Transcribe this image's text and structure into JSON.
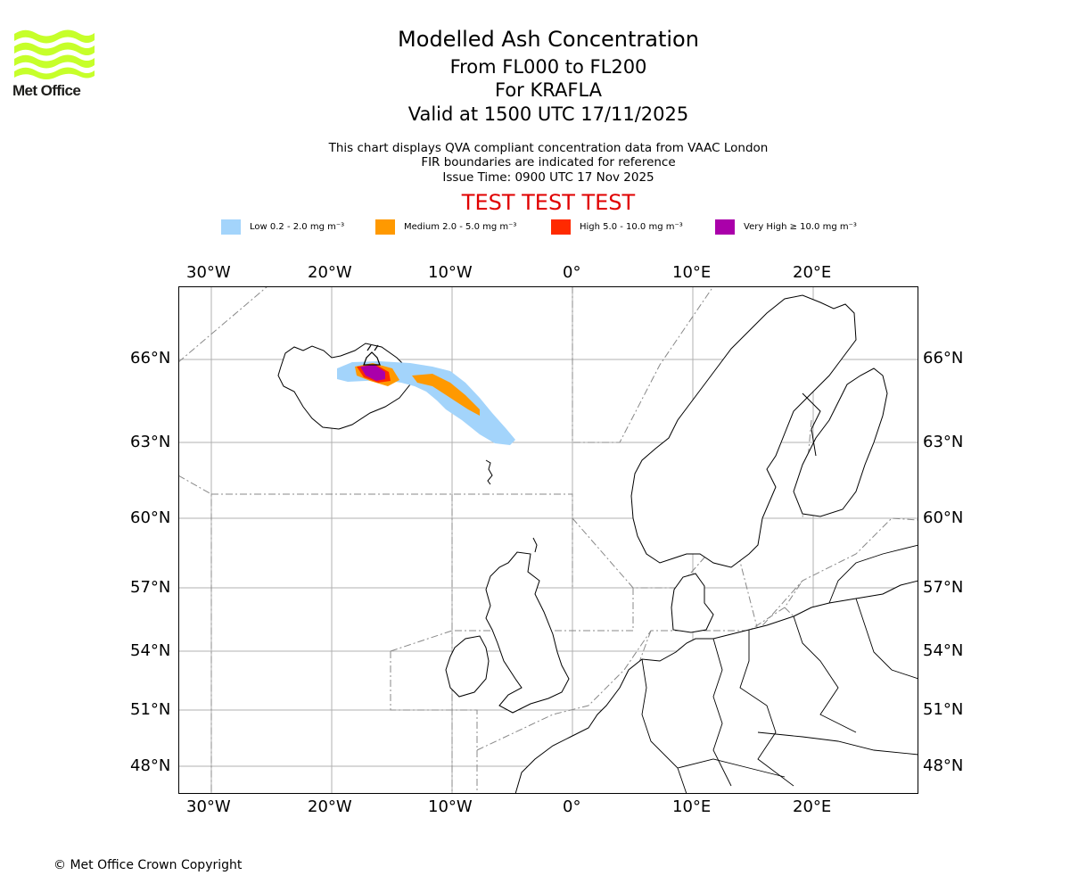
{
  "branding": {
    "logo_text": "Met Office",
    "logo_color": "#c6ff2a",
    "copyright": "© Met Office Crown Copyright"
  },
  "header": {
    "title": "Modelled Ash Concentration",
    "level_range": "From FL000 to FL200",
    "volcano": "For KRAFLA",
    "valid_time": "Valid at 1500 UTC 17/11/2025",
    "desc_line1": "This chart displays QVA compliant concentration data from VAAC London",
    "desc_line2": "FIR boundaries are indicated for reference",
    "issue_time": "Issue Time: 0900 UTC 17 Nov 2025",
    "test_banner": "TEST TEST TEST"
  },
  "legend": [
    {
      "label": "Low 0.2 - 2.0 mg m⁻³",
      "color": "#a3d4fb"
    },
    {
      "label": "Medium 2.0 - 5.0 mg m⁻³",
      "color": "#ff9900"
    },
    {
      "label": "High 5.0 - 10.0 mg m⁻³",
      "color": "#ff2a00"
    },
    {
      "label": "Very High ≥ 10.0 mg m⁻³",
      "color": "#aa00aa"
    }
  ],
  "map": {
    "lon_labels": [
      "30°W",
      "20°W",
      "10°W",
      "0°",
      "10°E",
      "20°E"
    ],
    "lat_labels": [
      "66°N",
      "63°N",
      "60°N",
      "57°N",
      "54°N",
      "51°N",
      "48°N"
    ]
  }
}
